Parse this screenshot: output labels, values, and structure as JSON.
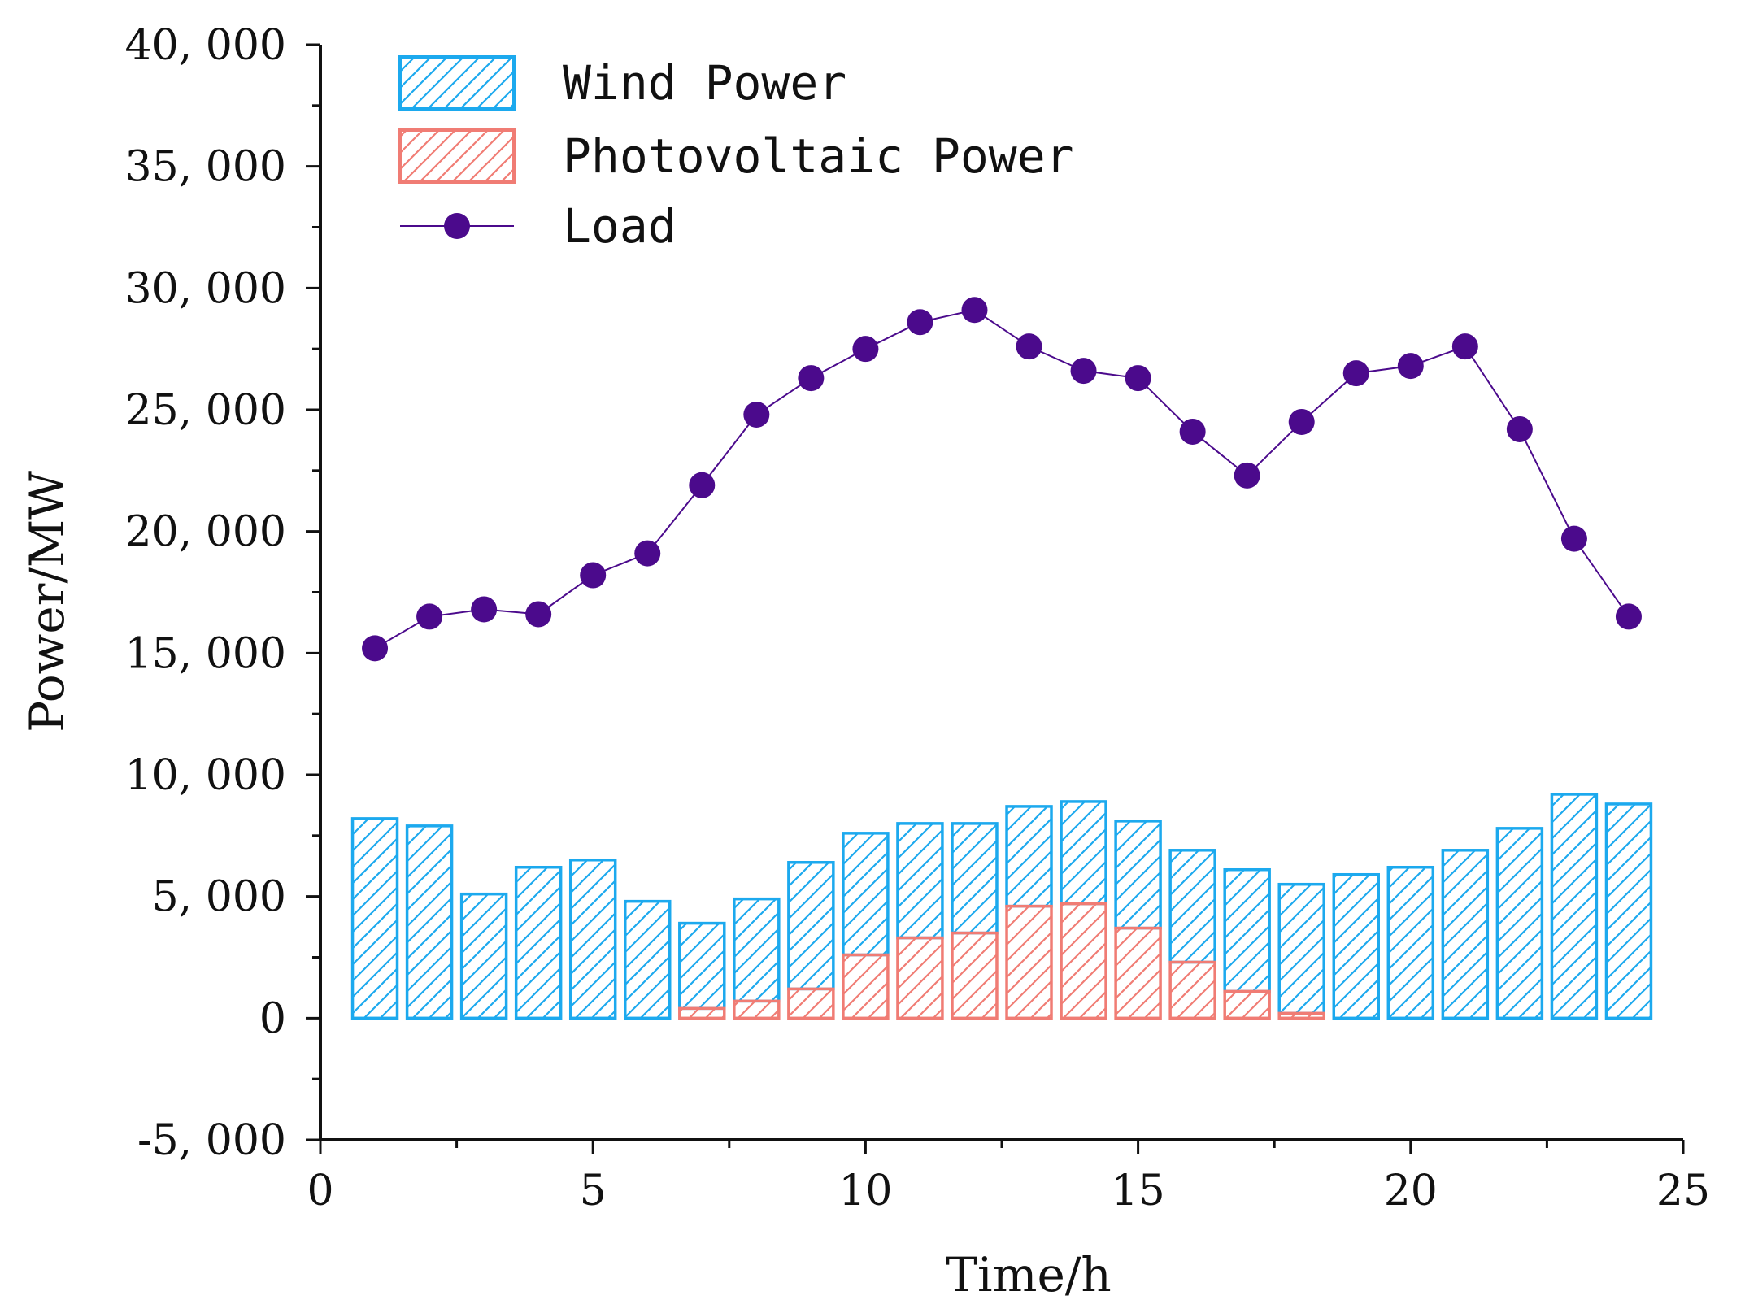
{
  "chart_data": {
    "type": "bar",
    "title": "",
    "xlabel": "Time/h",
    "ylabel": "Power/MW",
    "xlim": [
      0,
      25
    ],
    "ylim": [
      -5000,
      40000
    ],
    "x_ticks": [
      0,
      5,
      10,
      15,
      20,
      25
    ],
    "x_tick_labels": [
      "0",
      "5",
      "10",
      "15",
      "20",
      "25"
    ],
    "y_ticks": [
      -5000,
      0,
      5000,
      10000,
      15000,
      20000,
      25000,
      30000,
      35000,
      40000
    ],
    "y_tick_labels": [
      "-5, 000",
      "0",
      "5, 000",
      "10, 000",
      "15, 000",
      "20, 000",
      "25, 000",
      "30, 000",
      "35, 000",
      "40, 000"
    ],
    "legend_position": "top-left",
    "x": [
      1,
      2,
      3,
      4,
      5,
      6,
      7,
      8,
      9,
      10,
      11,
      12,
      13,
      14,
      15,
      16,
      17,
      18,
      19,
      20,
      21,
      22,
      23,
      24
    ],
    "series": [
      {
        "name": "Wind Power",
        "kind": "bar",
        "pattern": "hatch",
        "color": "#1CA9EE",
        "values": [
          8200,
          7900,
          5100,
          6200,
          6500,
          4800,
          3500,
          4200,
          5200,
          5000,
          4700,
          4500,
          4100,
          4200,
          4400,
          4600,
          5000,
          5300,
          5900,
          6200,
          6900,
          7800,
          9200,
          8800
        ]
      },
      {
        "name": "Photovoltaic Power",
        "kind": "bar",
        "pattern": "hatch",
        "color": "#F07C74",
        "values": [
          0,
          0,
          0,
          0,
          0,
          0,
          400,
          700,
          1200,
          2600,
          3300,
          3500,
          4600,
          4700,
          3700,
          2300,
          1100,
          200,
          0,
          0,
          0,
          0,
          0,
          0
        ]
      },
      {
        "name": "Load",
        "kind": "line",
        "marker": "circle",
        "color": "#4B0A8C",
        "values": [
          15200,
          16500,
          16800,
          16600,
          18200,
          19100,
          21900,
          24800,
          26300,
          27500,
          28600,
          29100,
          27600,
          26600,
          26300,
          24100,
          22300,
          24500,
          26500,
          26800,
          27600,
          24200,
          19700,
          16500
        ]
      }
    ]
  }
}
